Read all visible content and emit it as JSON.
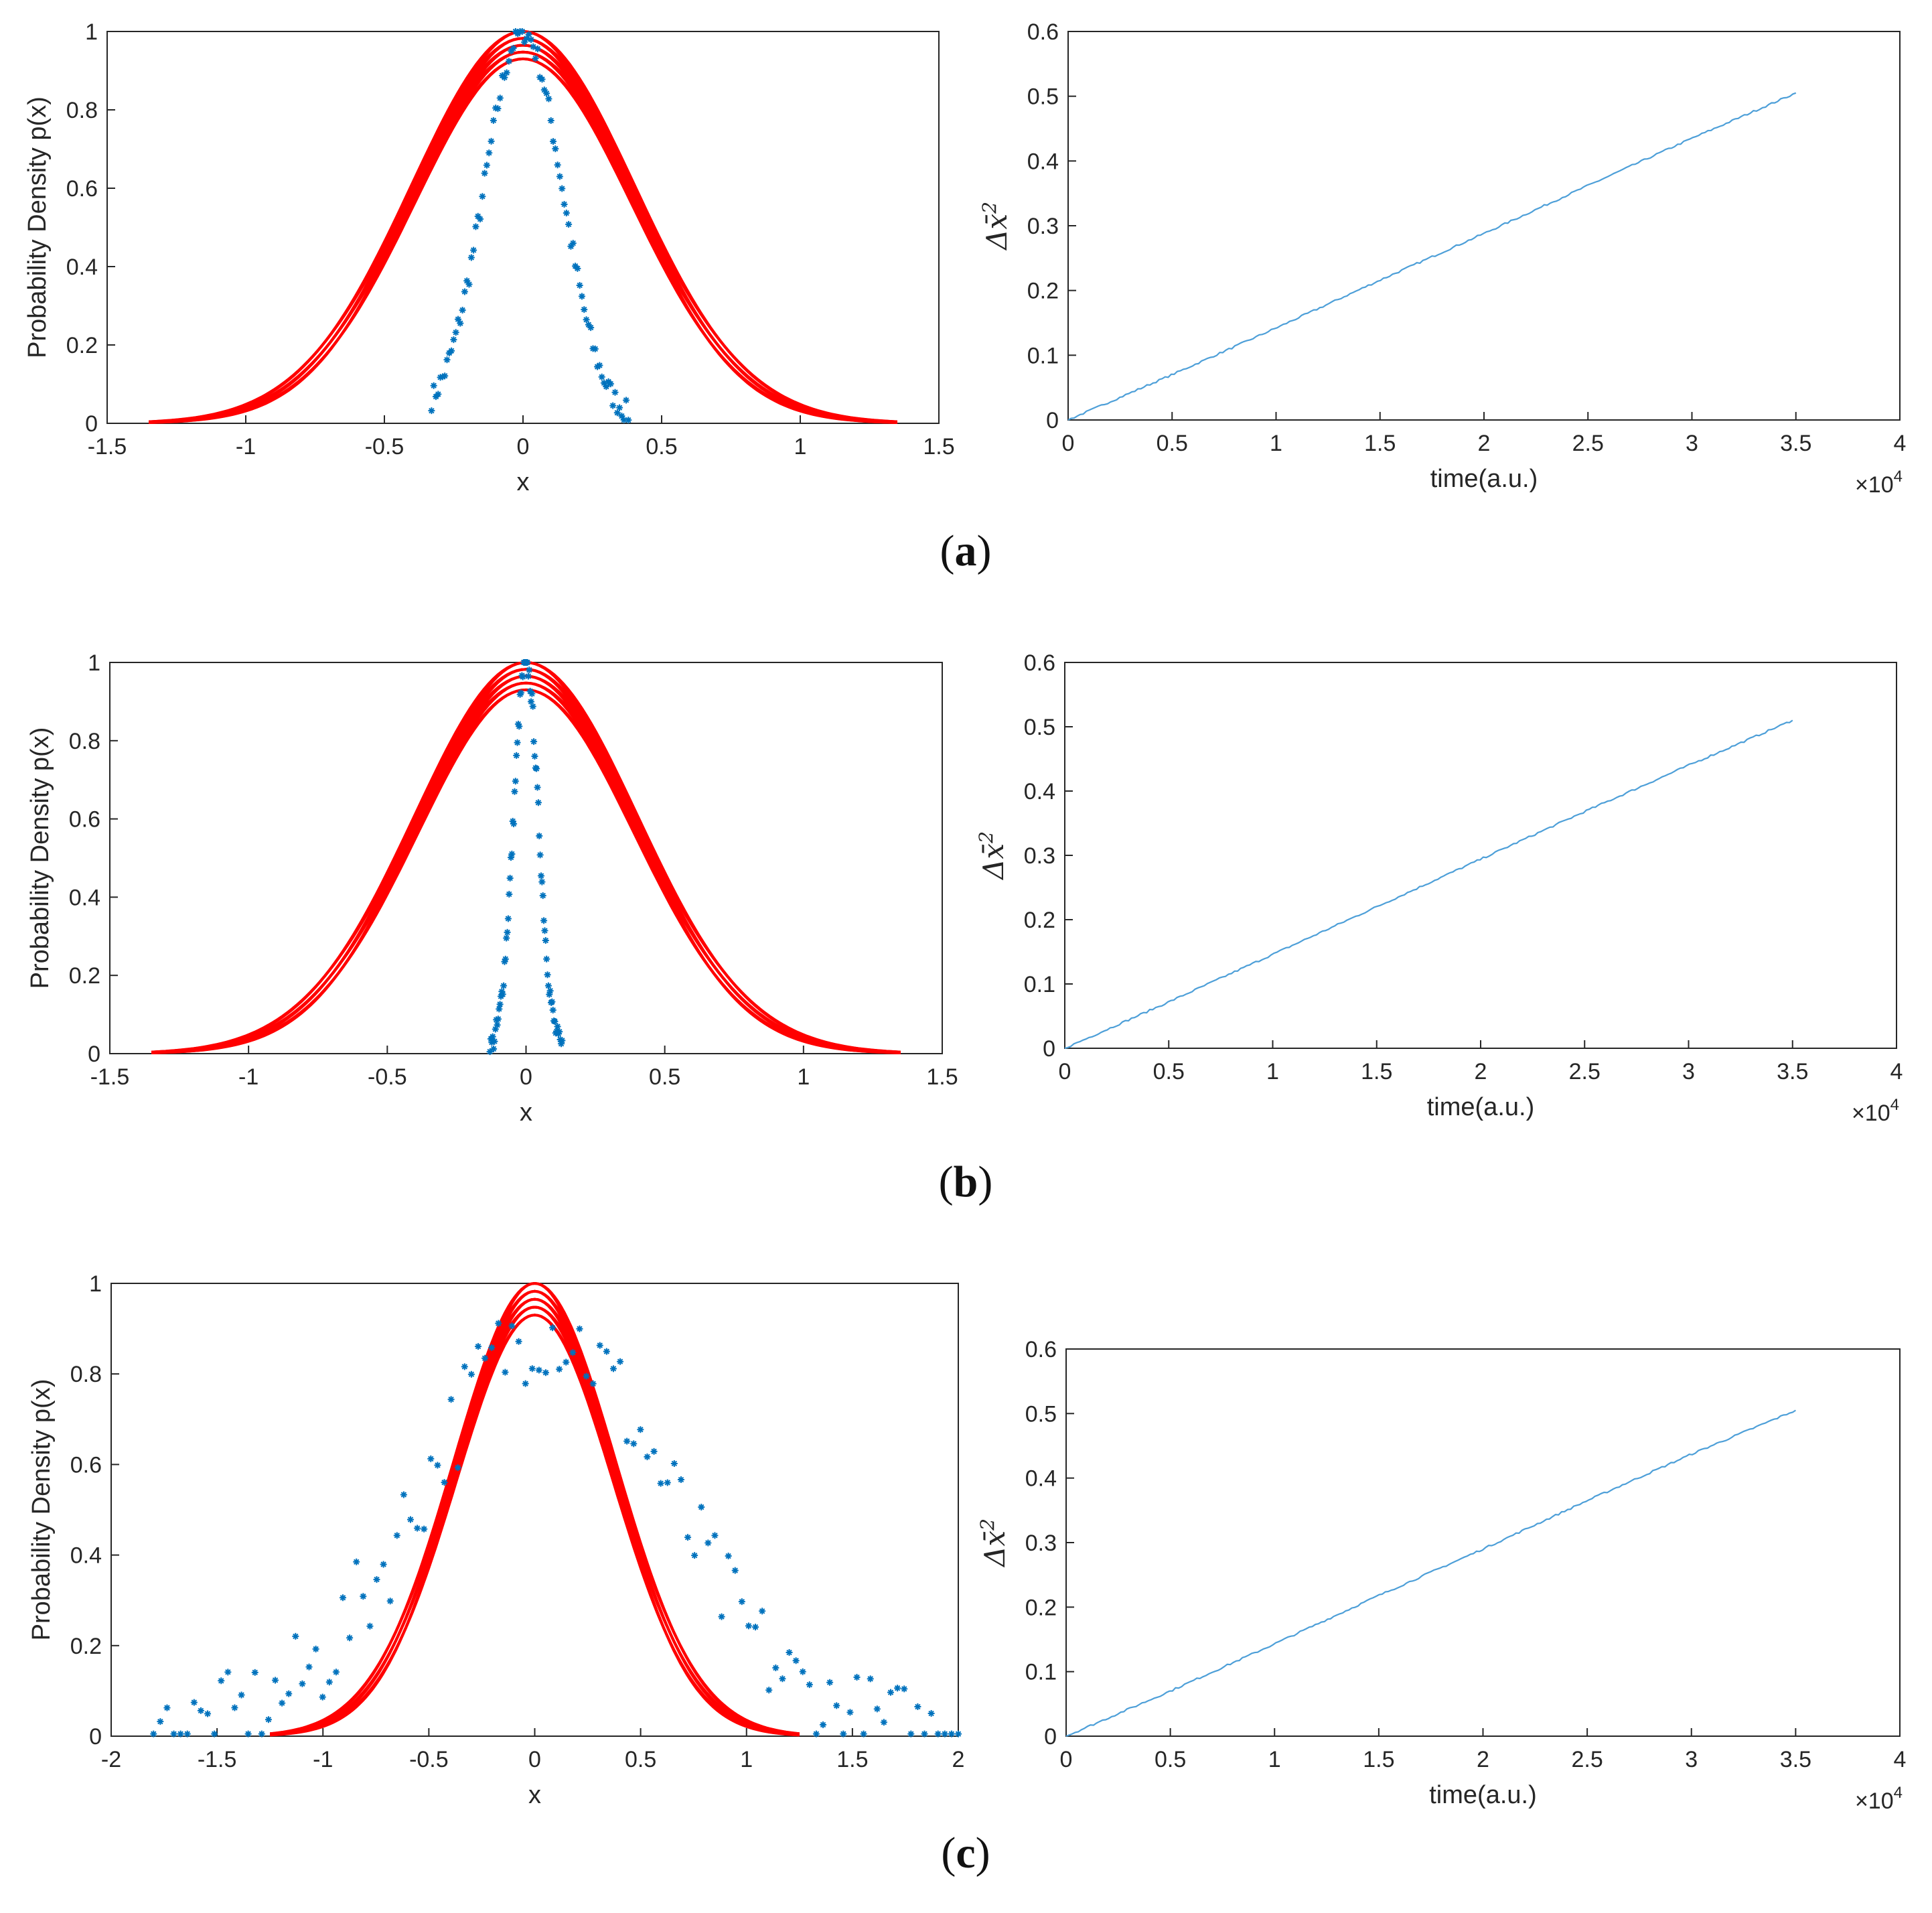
{
  "figure": {
    "panels": [
      {
        "label_open": "(",
        "label_letter": "a",
        "label_close": ")"
      },
      {
        "label_open": "(",
        "label_letter": "b",
        "label_close": ")"
      },
      {
        "label_open": "(",
        "label_letter": "c",
        "label_close": ")"
      }
    ],
    "colors": {
      "density_curve": "#ff0000",
      "scatter": "#0072bd",
      "msd_line": "#4d9fd8",
      "axes": "#262626"
    }
  },
  "chart_data": [
    {
      "type": "scatter",
      "panel": "a",
      "xlabel": "x",
      "ylabel": "Probability Density p(x)",
      "xlim": [
        -1.5,
        1.5
      ],
      "ylim": [
        0,
        1
      ],
      "xticks": [
        -1.5,
        -1,
        -0.5,
        0,
        0.5,
        1,
        1.5
      ],
      "yticks": [
        0,
        0.2,
        0.4,
        0.6,
        0.8,
        1
      ],
      "xtick_labels": [
        "-1.5",
        "-1",
        "-0.5",
        "0",
        "0.5",
        "1",
        "1.5"
      ],
      "ytick_labels": [
        "0",
        "0.2",
        "0.4",
        "0.6",
        "0.8",
        "1"
      ],
      "curves": {
        "name": "density curves",
        "shape": "gaussian",
        "center": 0,
        "sigma_range": [
          0.38,
          0.41
        ],
        "x_range": [
          -1.35,
          1.35
        ],
        "peak_range": [
          0.93,
          1.0
        ],
        "count": 14
      },
      "points": {
        "name": "samples",
        "marker": "*",
        "shape": "gaussian",
        "center": 0,
        "sigma": 0.14,
        "x_range": [
          -0.33,
          0.38
        ],
        "peak": 1.0,
        "count": 90
      }
    },
    {
      "type": "line",
      "panel": "a",
      "xlabel": "time(a.u.)",
      "ylabel": "Δx̄²",
      "ylabel_main": "Δ",
      "ylabel_var": "x̄",
      "ylabel_sup": "2",
      "xlim": [
        0,
        4
      ],
      "ylim": [
        0,
        0.6
      ],
      "x_multiplier_prefix": "×10",
      "x_multiplier_exp": "4",
      "xticks": [
        0,
        0.5,
        1,
        1.5,
        2,
        2.5,
        3,
        3.5,
        4
      ],
      "yticks": [
        0,
        0.1,
        0.2,
        0.3,
        0.4,
        0.5,
        0.6
      ],
      "xtick_labels": [
        "0",
        "0.5",
        "1",
        "1.5",
        "2",
        "2.5",
        "3",
        "3.5",
        "4"
      ],
      "ytick_labels": [
        "0",
        "0.1",
        "0.2",
        "0.3",
        "0.4",
        "0.5",
        "0.6"
      ],
      "series": [
        {
          "name": "MSD",
          "x": [
            0,
            0.5,
            1,
            1.5,
            2,
            2.5,
            3,
            3.5
          ],
          "values": [
            0,
            0.07,
            0.142,
            0.216,
            0.288,
            0.362,
            0.435,
            0.505
          ]
        }
      ]
    },
    {
      "type": "scatter",
      "panel": "b",
      "xlabel": "x",
      "ylabel": "Probability Density p(x)",
      "xlim": [
        -1.5,
        1.5
      ],
      "ylim": [
        0,
        1
      ],
      "xticks": [
        -1.5,
        -1,
        -0.5,
        0,
        0.5,
        1,
        1.5
      ],
      "yticks": [
        0,
        0.2,
        0.4,
        0.6,
        0.8,
        1
      ],
      "xtick_labels": [
        "-1.5",
        "-1",
        "-0.5",
        "0",
        "0.5",
        "1",
        "1.5"
      ],
      "ytick_labels": [
        "0",
        "0.2",
        "0.4",
        "0.6",
        "0.8",
        "1"
      ],
      "curves": {
        "name": "density curves",
        "shape": "gaussian",
        "center": 0,
        "sigma_range": [
          0.38,
          0.41
        ],
        "x_range": [
          -1.35,
          1.35
        ],
        "peak_range": [
          0.93,
          1.0
        ],
        "count": 14
      },
      "points": {
        "name": "samples",
        "marker": "*",
        "shape": "gaussian",
        "center": 0,
        "sigma": 0.045,
        "x_range": [
          -0.13,
          0.13
        ],
        "peak": 1.0,
        "count": 80
      }
    },
    {
      "type": "line",
      "panel": "b",
      "xlabel": "time(a.u.)",
      "ylabel": "Δx̄²",
      "ylabel_main": "Δ",
      "ylabel_var": "x̄",
      "ylabel_sup": "2",
      "xlim": [
        0,
        4
      ],
      "ylim": [
        0,
        0.6
      ],
      "x_multiplier_prefix": "×10",
      "x_multiplier_exp": "4",
      "xticks": [
        0,
        0.5,
        1,
        1.5,
        2,
        2.5,
        3,
        3.5,
        4
      ],
      "yticks": [
        0,
        0.1,
        0.2,
        0.3,
        0.4,
        0.5,
        0.6
      ],
      "xtick_labels": [
        "0",
        "0.5",
        "1",
        "1.5",
        "2",
        "2.5",
        "3",
        "3.5",
        "4"
      ],
      "ytick_labels": [
        "0",
        "0.1",
        "0.2",
        "0.3",
        "0.4",
        "0.5",
        "0.6"
      ],
      "series": [
        {
          "name": "MSD",
          "x": [
            0,
            0.5,
            1,
            1.5,
            2,
            2.5,
            3,
            3.5
          ],
          "values": [
            0,
            0.072,
            0.146,
            0.22,
            0.294,
            0.368,
            0.44,
            0.51
          ]
        }
      ]
    },
    {
      "type": "scatter",
      "panel": "c",
      "xlabel": "x",
      "ylabel": "Probability Density p(x)",
      "xlim": [
        -2,
        2
      ],
      "ylim": [
        0,
        1
      ],
      "xticks": [
        -2,
        -1.5,
        -1,
        -0.5,
        0,
        0.5,
        1,
        1.5,
        2
      ],
      "yticks": [
        0,
        0.2,
        0.4,
        0.6,
        0.8,
        1
      ],
      "xtick_labels": [
        "-2",
        "-1.5",
        "-1",
        "-0.5",
        "0",
        "0.5",
        "1",
        "1.5",
        "2"
      ],
      "ytick_labels": [
        "0",
        "0.2",
        "0.4",
        "0.6",
        "0.8",
        "1"
      ],
      "curves": {
        "name": "density curves",
        "shape": "gaussian",
        "center": 0,
        "sigma_range": [
          0.36,
          0.39
        ],
        "x_range": [
          -1.25,
          1.25
        ],
        "peak_range": [
          0.93,
          1.0
        ],
        "count": 14
      },
      "points": {
        "name": "samples",
        "marker": "*",
        "shape": "gaussian",
        "center": 0.05,
        "sigma": 0.58,
        "x_range": [
          -1.8,
          2.0
        ],
        "peak": 0.9,
        "count": 120
      }
    },
    {
      "type": "line",
      "panel": "c",
      "xlabel": "time(a.u.)",
      "ylabel": "Δx̄²",
      "ylabel_main": "Δ",
      "ylabel_var": "x̄",
      "ylabel_sup": "2",
      "xlim": [
        0,
        4
      ],
      "ylim": [
        0,
        0.6
      ],
      "x_multiplier_prefix": "×10",
      "x_multiplier_exp": "4",
      "xticks": [
        0,
        0.5,
        1,
        1.5,
        2,
        2.5,
        3,
        3.5,
        4
      ],
      "yticks": [
        0,
        0.1,
        0.2,
        0.3,
        0.4,
        0.5,
        0.6
      ],
      "xtick_labels": [
        "0",
        "0.5",
        "1",
        "1.5",
        "2",
        "2.5",
        "3",
        "3.5",
        "4"
      ],
      "ytick_labels": [
        "0",
        "0.1",
        "0.2",
        "0.3",
        "0.4",
        "0.5",
        "0.6"
      ],
      "series": [
        {
          "name": "MSD",
          "x": [
            0,
            0.5,
            1,
            1.5,
            2,
            2.5,
            3,
            3.5
          ],
          "values": [
            0,
            0.07,
            0.143,
            0.218,
            0.29,
            0.365,
            0.437,
            0.505
          ]
        }
      ]
    }
  ]
}
